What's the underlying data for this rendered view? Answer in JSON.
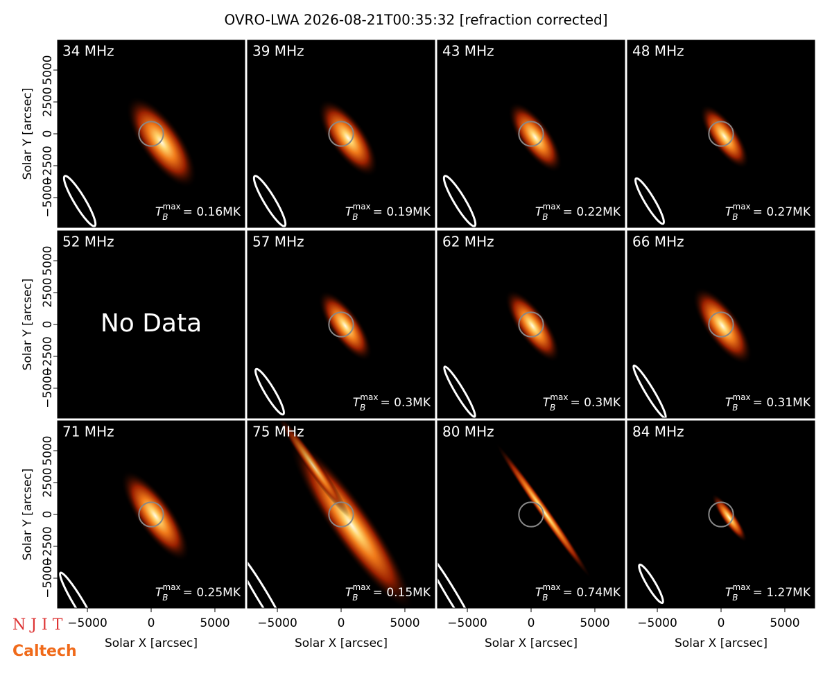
{
  "chart_data": {
    "type": "image_grid",
    "title": "OVRO-LWA 2026-08-21T00:35:32 [refraction corrected]",
    "xlabel": "Solar X [arcsec]",
    "ylabel": "Solar Y [arcsec]",
    "xlim": [
      -7340,
      7340
    ],
    "ylim": [
      -7340,
      7340
    ],
    "xticks": [
      {
        "value": -5000,
        "label": "−5000"
      },
      0,
      5000
    ],
    "yticks": [
      {
        "value": -5000,
        "label": "−5000"
      },
      {
        "value": -2500,
        "label": "−2500"
      },
      0,
      2500,
      5000
    ],
    "tmax_symbol": "T",
    "tmax_sub": "B",
    "tmax_sup": "max",
    "panels": [
      {
        "freq": "34 MHz",
        "tmax": "= 0.16MK"
      },
      {
        "freq": "39 MHz",
        "tmax": "= 0.19MK"
      },
      {
        "freq": "43 MHz",
        "tmax": "= 0.22MK"
      },
      {
        "freq": "48 MHz",
        "tmax": "= 0.27MK"
      },
      {
        "freq": "52 MHz",
        "message": "No Data"
      },
      {
        "freq": "57 MHz",
        "tmax": "= 0.3MK"
      },
      {
        "freq": "62 MHz",
        "tmax": "= 0.3MK"
      },
      {
        "freq": "66 MHz",
        "tmax": "= 0.31MK"
      },
      {
        "freq": "71 MHz",
        "tmax": "= 0.25MK"
      },
      {
        "freq": "75 MHz",
        "tmax": "= 0.15MK"
      },
      {
        "freq": "80 MHz",
        "tmax": "= 0.74MK"
      },
      {
        "freq": "84 MHz",
        "tmax": "= 1.27MK"
      }
    ],
    "logos": [
      "N J I T",
      "Caltech"
    ]
  }
}
